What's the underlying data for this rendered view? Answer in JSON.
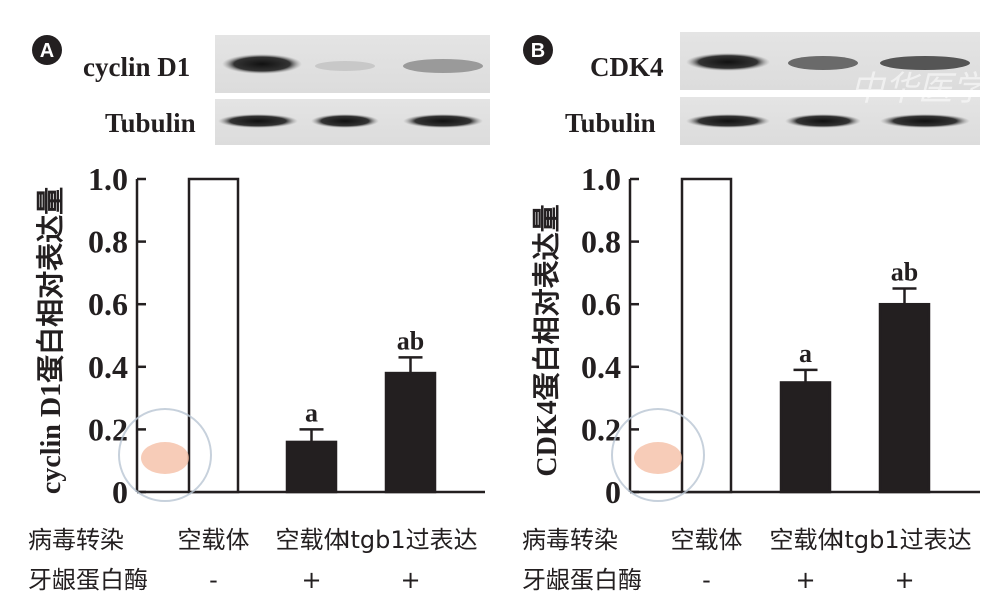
{
  "chart_data": [
    {
      "type": "bar",
      "panel_label": "A",
      "blot_labels": [
        "cyclin D1",
        "Tubulin"
      ],
      "ylabel": "cyclin D1蛋白相对表达量",
      "ylim": [
        0,
        1.0
      ],
      "yticks": [
        "0",
        "0.2",
        "0.4",
        "0.6",
        "0.8",
        "1.0"
      ],
      "row_labels": [
        "病毒转染",
        "牙龈蛋白酶"
      ],
      "categories": [
        "空载体",
        "空载体",
        "Itgb1过表达"
      ],
      "row2_values": [
        "-",
        "+",
        "+"
      ],
      "values": [
        1.0,
        0.16,
        0.38
      ],
      "error_upper": [
        null,
        0.2,
        0.43
      ],
      "bar_fill": [
        "#ffffff",
        "#231f20",
        "#231f20"
      ],
      "annotations": [
        "",
        "a",
        "ab"
      ]
    },
    {
      "type": "bar",
      "panel_label": "B",
      "blot_labels": [
        "CDK4",
        "Tubulin"
      ],
      "ylabel": "CDK4蛋白相对表达量",
      "ylim": [
        0,
        1.0
      ],
      "yticks": [
        "0",
        "0.2",
        "0.4",
        "0.6",
        "0.8",
        "1.0"
      ],
      "row_labels": [
        "病毒转染",
        "牙龈蛋白酶"
      ],
      "categories": [
        "空载体",
        "空载体",
        "Itgb1过表达"
      ],
      "row2_values": [
        "-",
        "+",
        "+"
      ],
      "values": [
        1.0,
        0.35,
        0.6
      ],
      "error_upper": [
        null,
        0.39,
        0.65
      ],
      "bar_fill": [
        "#ffffff",
        "#231f20",
        "#231f20"
      ],
      "annotations": [
        "",
        "a",
        "ab"
      ]
    }
  ],
  "watermark": "中华医学会"
}
